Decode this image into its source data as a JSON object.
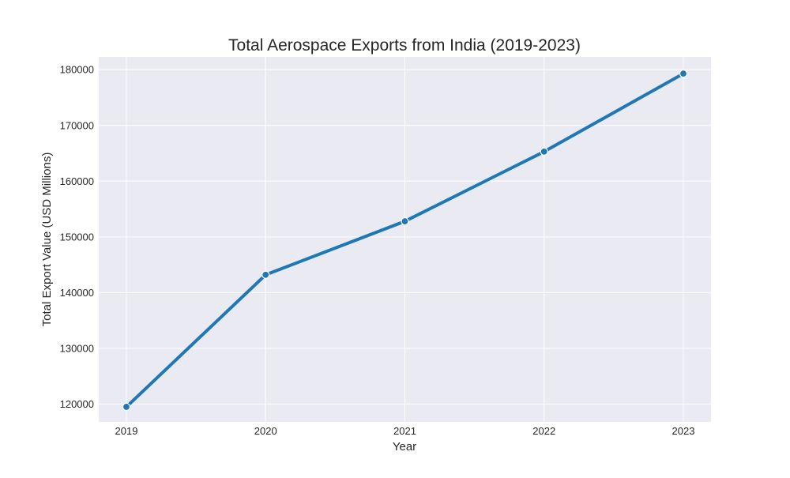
{
  "chart_data": {
    "type": "line",
    "title": "Total Aerospace Exports from India (2019-2023)",
    "xlabel": "Year",
    "ylabel": "Total Export Value (USD Millions)",
    "categories": [
      "2019",
      "2020",
      "2021",
      "2022",
      "2023"
    ],
    "series": [
      {
        "values": [
          119500,
          143200,
          152800,
          165300,
          179300
        ]
      }
    ],
    "ylim": [
      116800,
      182300
    ],
    "yticks": [
      120000,
      130000,
      140000,
      150000,
      160000,
      170000,
      180000
    ],
    "grid": true,
    "legend": "none",
    "colors": {
      "line": "#1f77b4",
      "plot_background": "#eaeaf2",
      "grid": "#ffffff",
      "text": "#262626"
    }
  }
}
